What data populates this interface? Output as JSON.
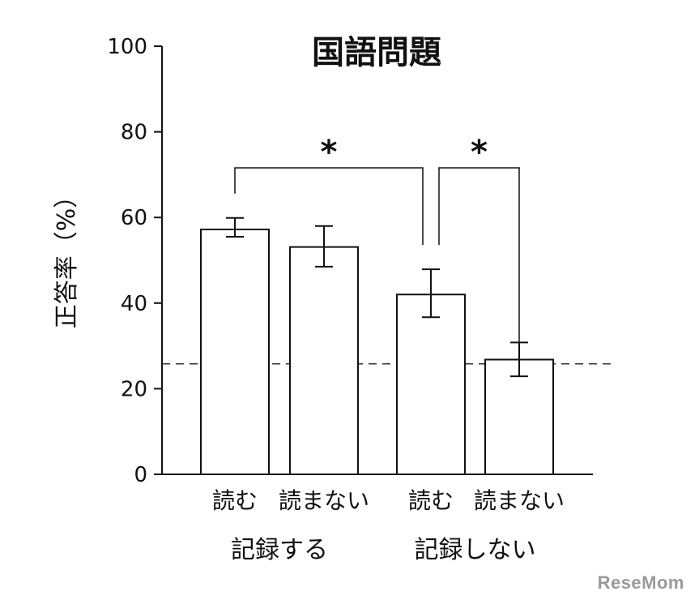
{
  "chart_data": {
    "type": "bar",
    "title": "国語問題",
    "ylabel": "正答率（%）",
    "ylim": [
      0,
      100
    ],
    "yticks": [
      0,
      20,
      40,
      60,
      80,
      100
    ],
    "categories": [
      "読む",
      "読まない",
      "読む",
      "読まない"
    ],
    "groups": [
      "記録する",
      "記録しない"
    ],
    "values": [
      57.2,
      53.1,
      42.0,
      26.8
    ],
    "error": [
      [
        55.5,
        59.9
      ],
      [
        48.5,
        58.0
      ],
      [
        36.7,
        47.9
      ],
      [
        22.9,
        30.8
      ]
    ],
    "reference_line": 25.8,
    "significance": [
      {
        "from": 0,
        "to": 2,
        "label": "*"
      },
      {
        "from": 2,
        "to": 3,
        "label": "*"
      }
    ],
    "grid": false,
    "legend": "none"
  },
  "watermark": "ReseMom"
}
